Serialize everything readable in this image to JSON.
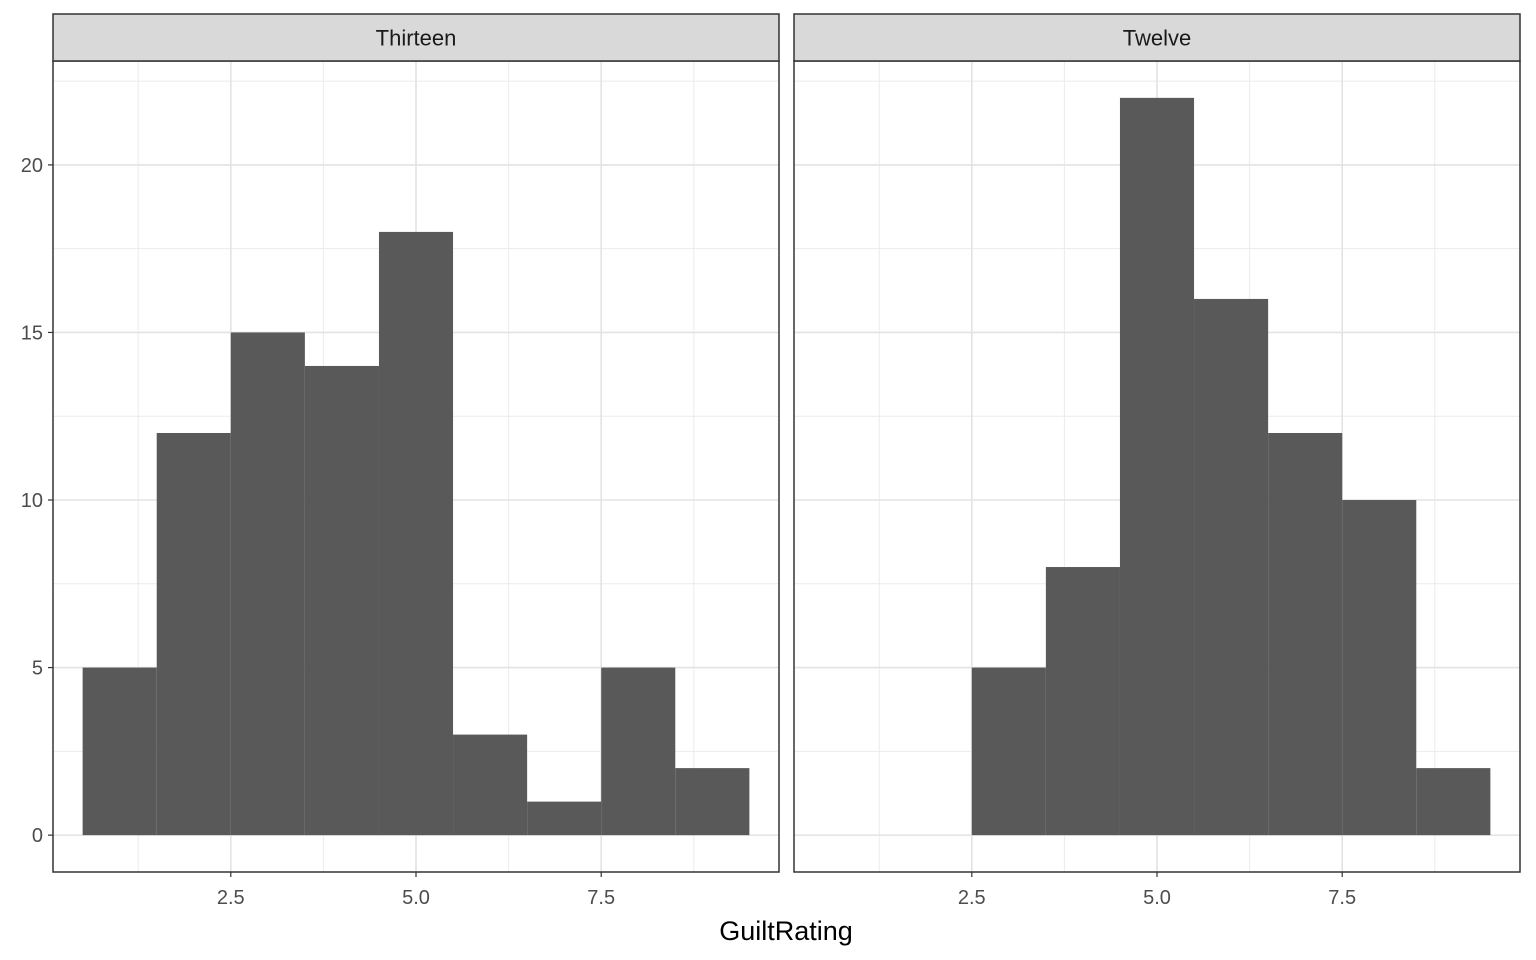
{
  "chart_data": {
    "type": "bar",
    "xlabel": "GuiltRating",
    "ylabel": "",
    "xlim": [
      0.1,
      9.9
    ],
    "ylim": [
      -1.1,
      23.1
    ],
    "x_ticks": [
      2.5,
      5.0,
      7.5
    ],
    "x_tick_labels": [
      "2.5",
      "5.0",
      "7.5"
    ],
    "y_ticks": [
      0,
      5,
      10,
      15,
      20
    ],
    "y_tick_labels": [
      "0",
      "5",
      "10",
      "15",
      "20"
    ],
    "grid": true,
    "bar_color": "#595959",
    "bin_width": 1,
    "panels": [
      {
        "label": "Thirteen",
        "bins": [
          {
            "x": 1,
            "count": 5
          },
          {
            "x": 2,
            "count": 12
          },
          {
            "x": 3,
            "count": 15
          },
          {
            "x": 4,
            "count": 14
          },
          {
            "x": 5,
            "count": 18
          },
          {
            "x": 6,
            "count": 3
          },
          {
            "x": 7,
            "count": 1
          },
          {
            "x": 8,
            "count": 5
          },
          {
            "x": 9,
            "count": 2
          }
        ]
      },
      {
        "label": "Twelve",
        "bins": [
          {
            "x": 3,
            "count": 5
          },
          {
            "x": 4,
            "count": 8
          },
          {
            "x": 5,
            "count": 22
          },
          {
            "x": 6,
            "count": 16
          },
          {
            "x": 7,
            "count": 12
          },
          {
            "x": 8,
            "count": 10
          },
          {
            "x": 9,
            "count": 2
          }
        ]
      }
    ]
  }
}
